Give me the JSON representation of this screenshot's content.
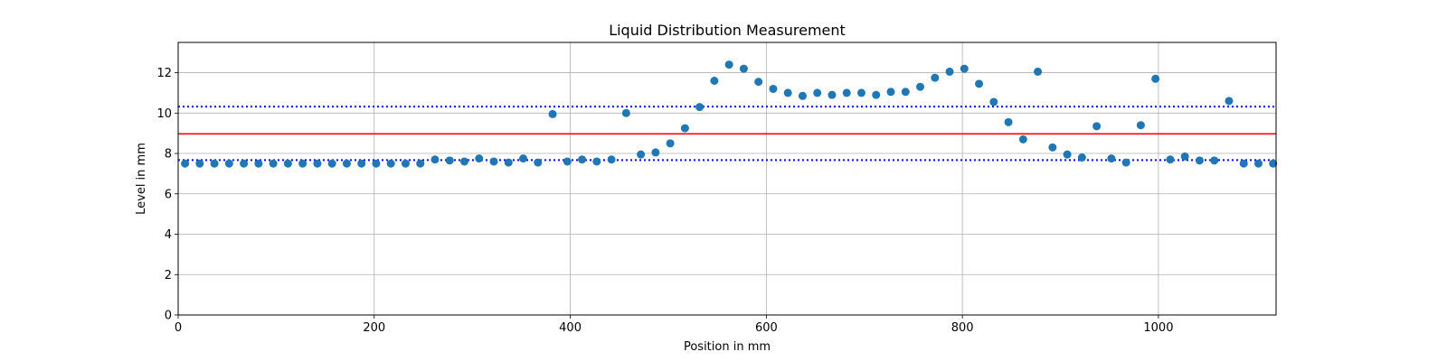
{
  "chart_data": {
    "type": "scatter",
    "title": "Liquid Distribution Measurement",
    "xlabel": "Position in mm",
    "ylabel": "Level in mm",
    "xlim": [
      0,
      1120
    ],
    "ylim": [
      0,
      13.5
    ],
    "xticks": [
      0,
      200,
      400,
      600,
      800,
      1000
    ],
    "yticks": [
      0,
      2,
      4,
      6,
      8,
      10,
      12
    ],
    "grid": true,
    "point_color": "#1f77b4",
    "x": [
      7,
      22,
      37,
      52,
      67,
      82,
      97,
      112,
      127,
      142,
      157,
      172,
      187,
      202,
      217,
      232,
      247,
      262,
      277,
      292,
      307,
      322,
      337,
      352,
      367,
      382,
      397,
      412,
      427,
      442,
      457,
      472,
      487,
      502,
      517,
      532,
      547,
      562,
      577,
      592,
      607,
      622,
      637,
      652,
      667,
      682,
      697,
      712,
      727,
      742,
      757,
      772,
      787,
      802,
      817,
      832,
      847,
      862,
      877,
      892,
      907,
      922,
      937,
      952,
      967,
      982,
      997,
      1012,
      1027,
      1042,
      1057,
      1072,
      1087,
      1102,
      1117
    ],
    "y": [
      7.5,
      7.5,
      7.5,
      7.5,
      7.5,
      7.5,
      7.5,
      7.5,
      7.5,
      7.5,
      7.5,
      7.5,
      7.5,
      7.5,
      7.5,
      7.5,
      7.5,
      7.7,
      7.65,
      7.6,
      7.75,
      7.6,
      7.55,
      7.75,
      7.55,
      9.95,
      7.6,
      7.7,
      7.6,
      7.7,
      10.0,
      7.95,
      8.05,
      8.5,
      9.25,
      10.3,
      11.6,
      12.4,
      12.2,
      11.55,
      11.2,
      11.0,
      10.85,
      11.0,
      10.9,
      11.0,
      11.0,
      10.9,
      11.05,
      11.05,
      11.3,
      11.75,
      12.05,
      12.2,
      11.45,
      10.55,
      9.55,
      8.7,
      12.05,
      8.3,
      7.95,
      7.8,
      9.35,
      7.75,
      7.55,
      9.4,
      11.7,
      7.7,
      7.85,
      7.65,
      7.65,
      10.6,
      7.5,
      7.5,
      7.5
    ],
    "hlines": [
      {
        "y": 8.97,
        "color": "#ff0000",
        "style": "solid"
      },
      {
        "y": 10.32,
        "color": "#0000ff",
        "style": "dotted"
      },
      {
        "y": 7.67,
        "color": "#0000ff",
        "style": "dotted"
      }
    ]
  }
}
